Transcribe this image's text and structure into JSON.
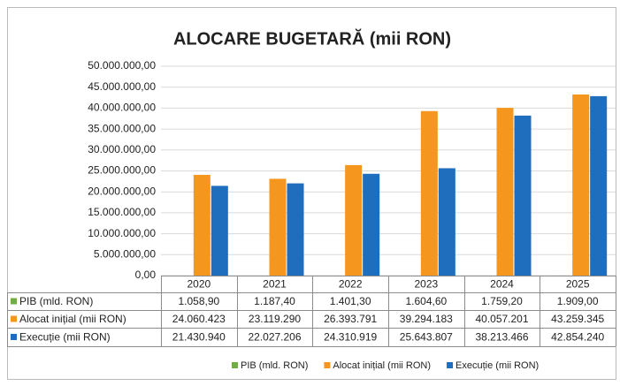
{
  "chart_data": {
    "type": "bar",
    "title": "ALOCARE BUGETARĂ (mii RON)",
    "categories": [
      "2020",
      "2021",
      "2022",
      "2023",
      "2024",
      "2025"
    ],
    "series": [
      {
        "name": "PIB (mld. RON)",
        "color": "#70ad47",
        "values": [
          1058.9,
          1187.4,
          1401.3,
          1604.6,
          1759.2,
          1909.0
        ],
        "value_labels": [
          "1.058,90",
          "1.187,40",
          "1.401,30",
          "1.604,60",
          "1.759,20",
          "1.909,00"
        ]
      },
      {
        "name": "Alocat inițial (mii RON)",
        "color": "#f5961f",
        "values": [
          24060423,
          23119290,
          26393791,
          39294183,
          40057201,
          43259345
        ],
        "value_labels": [
          "24.060.423",
          "23.119.290",
          "26.393.791",
          "39.294.183",
          "40.057.201",
          "43.259.345"
        ]
      },
      {
        "name": "Execuție (mii RON)",
        "color": "#1f6ebd",
        "values": [
          21430940,
          22027206,
          24310919,
          25643807,
          38213466,
          42854240
        ],
        "value_labels": [
          "21.430.940",
          "22.027.206",
          "24.310.919",
          "25.643.807",
          "38.213.466",
          "42.854.240"
        ]
      }
    ],
    "ylim": [
      0,
      50000000
    ],
    "yticks": [
      {
        "value": 0,
        "label": "0,00"
      },
      {
        "value": 5000000,
        "label": "5.000.000,00"
      },
      {
        "value": 10000000,
        "label": "10.000.000,00"
      },
      {
        "value": 15000000,
        "label": "15.000.000,00"
      },
      {
        "value": 20000000,
        "label": "20.000.000,00"
      },
      {
        "value": 25000000,
        "label": "25.000.000,00"
      },
      {
        "value": 30000000,
        "label": "30.000.000,00"
      },
      {
        "value": 35000000,
        "label": "35.000.000,00"
      },
      {
        "value": 40000000,
        "label": "40.000.000,00"
      },
      {
        "value": 45000000,
        "label": "45.000.000,00"
      },
      {
        "value": 50000000,
        "label": "50.000.000,00"
      }
    ],
    "grid": true
  }
}
